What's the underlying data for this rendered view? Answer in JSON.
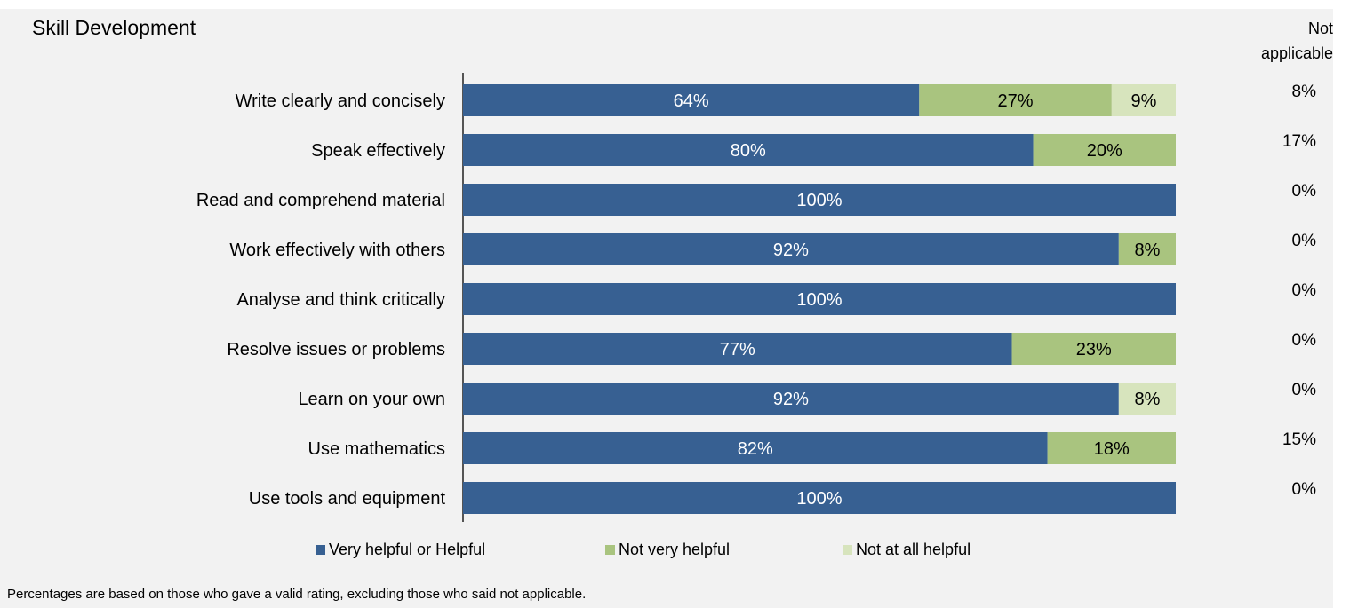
{
  "chart_data": {
    "type": "bar",
    "orientation": "horizontal",
    "stacked": true,
    "title": "Skill Development",
    "categories": [
      "Write clearly and concisely",
      "Speak effectively",
      "Read and comprehend material",
      "Work effectively with others",
      "Analyse and think critically",
      "Resolve issues or problems",
      "Learn on your own",
      "Use mathematics",
      "Use tools and equipment"
    ],
    "series": [
      {
        "name": "Very helpful or Helpful",
        "values": [
          64,
          80,
          100,
          92,
          100,
          77,
          92,
          82,
          100
        ]
      },
      {
        "name": "Not very helpful",
        "values": [
          27,
          20,
          0,
          8,
          0,
          23,
          0,
          18,
          0
        ]
      },
      {
        "name": "Not at all helpful",
        "values": [
          9,
          0,
          0,
          0,
          0,
          0,
          8,
          0,
          0
        ]
      }
    ],
    "xlim": [
      0,
      100
    ],
    "legend_position": "bottom",
    "grid": false,
    "not_applicable": {
      "header": [
        "Not",
        "applicable"
      ],
      "values": [
        "8%",
        "17%",
        "0%",
        "0%",
        "0%",
        "0%",
        "0%",
        "15%",
        "0%"
      ]
    },
    "footnote": "Percentages are based on those who gave a valid rating, excluding those who said not applicable."
  },
  "colors": {
    "Very helpful or Helpful": "#376092",
    "Not very helpful": "#a9c47f",
    "Not at all helpful": "#d7e4bd",
    "label_on_dark": "#ffffff",
    "label_on_light": "#000000"
  }
}
